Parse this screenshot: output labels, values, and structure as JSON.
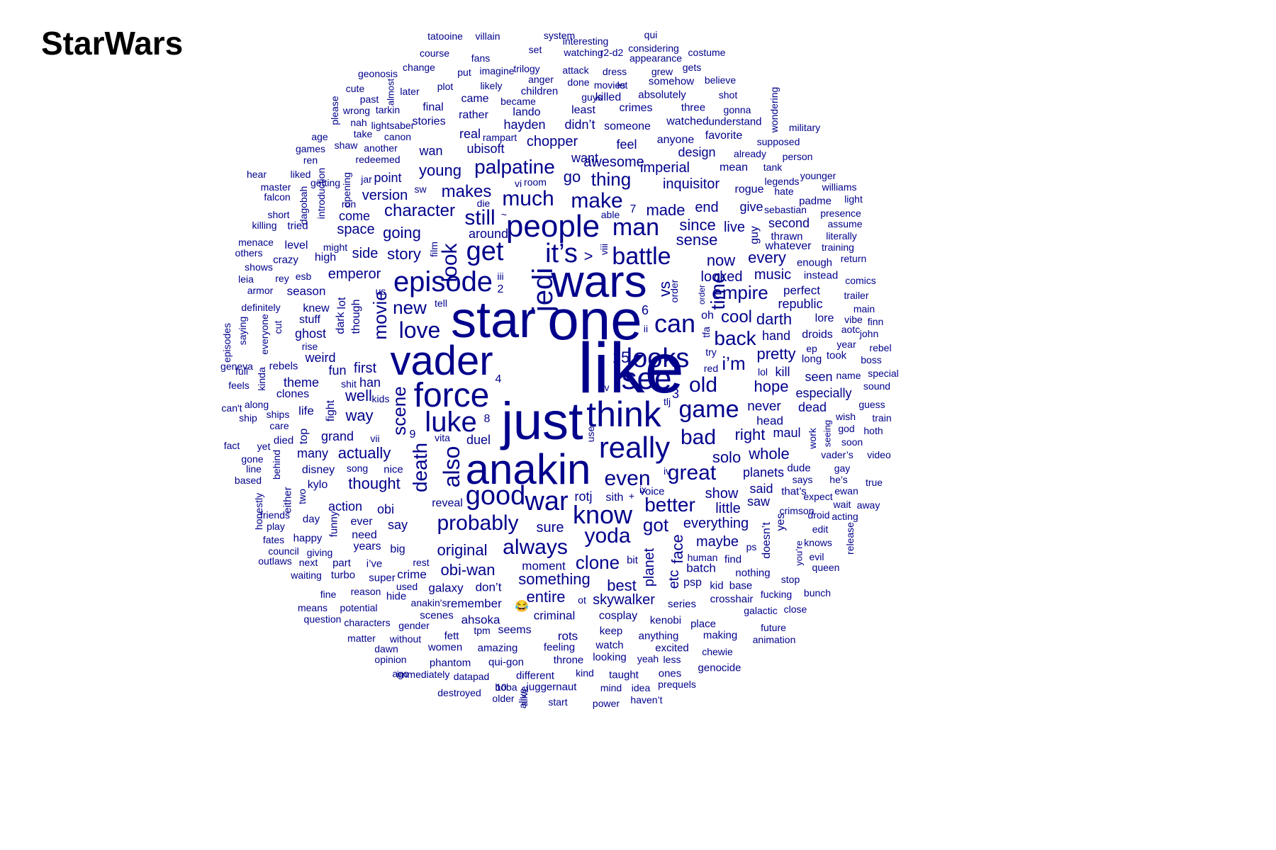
{
  "title": "StarWars",
  "colors": {
    "words": "#00008b",
    "title": "#000000",
    "background": "#ffffff"
  },
  "words": [
    "like",
    "one",
    "star",
    "just",
    "anakin",
    "wars",
    "vader",
    "jedi",
    "force",
    "think",
    "people",
    "see",
    "get",
    "it’s",
    "episode",
    "luke",
    "really",
    "good",
    "war",
    "know",
    "looks",
    "can",
    "battle",
    "man",
    "love",
    "also",
    "look",
    "make",
    "game",
    "time",
    "death",
    "scene",
    "much",
    "palpatine",
    "old",
    "great",
    "probably",
    "even",
    "yoda",
    "always",
    "better",
    "back",
    "bad",
    "new",
    "movie",
    "i’m",
    "empire",
    "got",
    "thing",
    "character",
    "makes",
    "going",
    "story",
    "young",
    "go",
    "sense",
    "since",
    "made",
    "imperial",
    "inquisitor",
    "now",
    "cool",
    "darth",
    "emperor",
    "solo",
    "right",
    "pretty",
    "hope",
    "actually",
    "thought",
    "clone",
    "original",
    "obi-wan",
    "something",
    "entire",
    "best",
    "skywalker",
    "planet",
    "everything",
    "maybe",
    "show",
    "little",
    "said",
    "saw",
    "sure",
    "duel",
    "grand",
    "planets",
    "whole",
    "head",
    "maul",
    "dead",
    "never",
    "hand",
    "republic",
    "kill",
    "seen",
    "especially",
    "well",
    "way",
    "first",
    "fun",
    "weird",
    "ghost",
    "stuff",
    "knew",
    "though",
    "lot",
    "dark",
    "fight",
    "han",
    "theme",
    "clones",
    "life",
    "top",
    "many",
    "disney",
    "kylo",
    "action",
    "obi",
    "say",
    "ever",
    "need",
    "years",
    "big",
    "crime",
    "galaxy",
    "don’t",
    "remember",
    "moment",
    "batch",
    "psp",
    "kid",
    "base",
    "crosshair",
    "series",
    "place",
    "kenobi",
    "anything",
    "excited",
    "cosplay",
    "criminal",
    "rots",
    "keep",
    "watch",
    "looking",
    "taught",
    "ones",
    "genocide",
    "chewie",
    "making",
    "ahsoka",
    "seems",
    "feeling",
    "throne",
    "qui-gon",
    "amazing",
    "women",
    "phantom",
    "different",
    "juggernaut",
    "start",
    "power",
    "haven’t",
    "idea",
    "mind",
    "kind",
    "prequels",
    "less",
    "yeah",
    "datapad",
    "destroyed",
    "older",
    "alive",
    "boba",
    "ago",
    "immediately",
    "opinion",
    "dawn",
    "matter",
    "without",
    "gender",
    "characters",
    "scenes",
    "fett",
    "tpm",
    "anakin's",
    "potential",
    "means",
    "question",
    "fine",
    "reason",
    "hide",
    "used",
    "super",
    "turbo",
    "part",
    "i’ve",
    "rest",
    "waiting",
    "next",
    "giving",
    "outlaws",
    "council",
    "fates",
    "happy",
    "day",
    "funny",
    "play",
    "friends",
    "honestly",
    "either",
    "two",
    "behind",
    "gone",
    "line",
    "based",
    "fact",
    "yet",
    "died",
    "care",
    "ships",
    "ship",
    "can't",
    "along",
    "feels",
    "kinda",
    "rebels",
    "season",
    "rise",
    "full",
    "geneva",
    "episodes",
    "saying",
    "everyone",
    "cut",
    "definitely",
    "armor",
    "leia",
    "rey",
    "esb",
    "shows",
    "crazy",
    "others",
    "menace",
    "level",
    "might",
    "high",
    "killing",
    "tried",
    "short",
    "falcon",
    "master",
    "dagobah",
    "introduction",
    "hear",
    "liked",
    "getting",
    "opening",
    "ren",
    "games",
    "shaw",
    "another",
    "redeemed",
    "age",
    "take",
    "canon",
    "nah",
    "lightsaber",
    "real",
    "rampart",
    "wan",
    "ubisoft",
    "hayden",
    "didn’t",
    "someone",
    "chopper",
    "feel",
    "want",
    "awesome",
    "design",
    "already",
    "mean",
    "anyone",
    "favorite",
    "watched",
    "understand",
    "three",
    "gonna",
    "crimes",
    "killed",
    "least",
    "lando",
    "became",
    "children",
    "absolutely",
    "shot",
    "guys",
    "done",
    "let",
    "movies",
    "somehow",
    "believe",
    "dress",
    "grew",
    "gets",
    "attack",
    "trilogy",
    "anger",
    "appearance",
    "set",
    "watching",
    "r2-d2",
    "considering",
    "costume",
    "course",
    "fans",
    "interesting",
    "qui",
    "system",
    "tatooine",
    "villain",
    "geonosis",
    "change",
    "put",
    "imagine",
    "plot",
    "likely",
    "later",
    "almost",
    "cute",
    "past",
    "wrong",
    "tarkin",
    "final",
    "stories",
    "came",
    "rather",
    "please",
    "wondering",
    "military",
    "supposed",
    "person",
    "tank",
    "legends",
    "younger",
    "williams",
    "light",
    "padme",
    "hate",
    "rogue",
    "give",
    "sebastian",
    "presence",
    "assume",
    "literally",
    "second",
    "thrawn",
    "whatever",
    "training",
    "return",
    "enough",
    "instead",
    "perfect",
    "comics",
    "trailer",
    "main",
    "aotc",
    "vibe",
    "finn",
    "john",
    "rebel",
    "boss",
    "special",
    "sound",
    "guess",
    "train",
    "hoth",
    "video",
    "soon",
    "vader’s",
    "gay",
    "true",
    "away",
    "acting",
    "release",
    "queen",
    "bunch",
    "close",
    "galactic",
    "animation",
    "future",
    "fucking",
    "stop",
    "nothing",
    "doesn’t",
    "yes",
    "crimson",
    "edit",
    "knows",
    "you’re",
    "evil",
    "expect",
    "ewan",
    "wait",
    "droid",
    "he’s",
    "says",
    "that’s",
    "dude",
    "seeing",
    "work",
    "god",
    "wish",
    "name",
    "year",
    "took",
    "ep",
    "long",
    "droids",
    "lore",
    "order",
    "vs",
    "face",
    "etc",
    "bit",
    "sith",
    "rotj",
    "reveal",
    "vita",
    "vii",
    "kids",
    "shit",
    "lol",
    "red",
    "try",
    "tfa",
    "oh",
    "tell",
    "us",
    "iii",
    "2",
    "6",
    "15",
    "3",
    "4",
    "8",
    "9",
    "7",
    "v",
    "ii",
    "iv",
    "ix",
    "tlj",
    "use",
    "viii",
    "film",
    "sw",
    "vi",
    "room",
    "die",
    "jar",
    "point",
    "version",
    "run",
    "come",
    "space",
    "side",
    "able",
    "around",
    "still",
    "~",
    ">",
    "every",
    "music",
    "looked",
    "end",
    "live",
    "guy",
    "order",
    "song",
    "nice",
    "voice",
    "human",
    "find",
    "ps",
    "ot",
    "alive",
    "10",
    "😂",
    "+"
  ]
}
